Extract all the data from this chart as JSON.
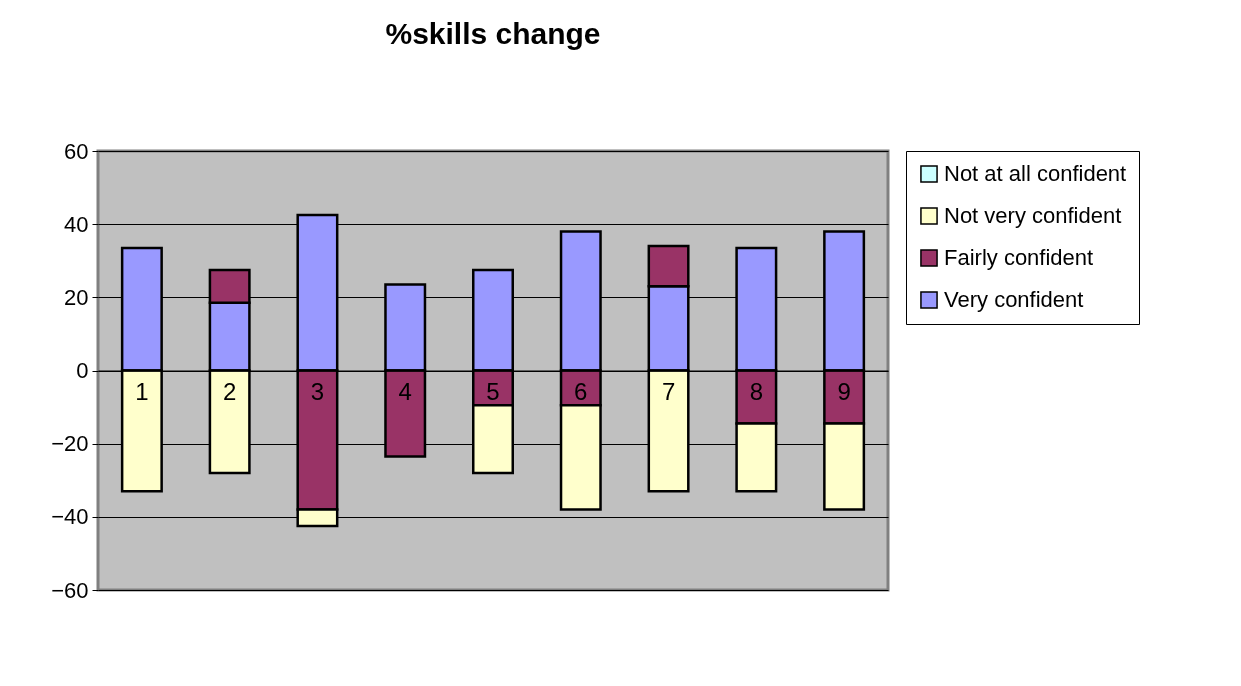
{
  "chart_data": {
    "type": "bar",
    "title": "%skills change",
    "stacked": true,
    "categories": [
      "1",
      "2",
      "3",
      "4",
      "5",
      "6",
      "7",
      "8",
      "9"
    ],
    "series": [
      {
        "name": "Very confident",
        "color": "#9999ff",
        "values": [
          33.5,
          18.5,
          42.5,
          23.5,
          27.5,
          38,
          23,
          33.5,
          38
        ]
      },
      {
        "name": "Fairly confident",
        "color": "#993366",
        "values": [
          null,
          9,
          -38,
          -23.5,
          -9.5,
          -9.5,
          11,
          -14.5,
          -14.5
        ]
      },
      {
        "name": "Not very confident",
        "color": "#ffffcc",
        "values": [
          -33,
          -28,
          -4.5,
          null,
          -18.5,
          -28.5,
          -33,
          -18.5,
          -23.5
        ]
      },
      {
        "name": "Not at all confident",
        "color": "#ccffff",
        "values": [
          null,
          null,
          null,
          null,
          null,
          null,
          null,
          null,
          null
        ]
      }
    ],
    "ylim": [
      -60,
      60
    ],
    "yticks": [
      -60,
      -40,
      -20,
      0,
      20,
      40,
      60
    ],
    "grid": "y",
    "legend": "right"
  }
}
